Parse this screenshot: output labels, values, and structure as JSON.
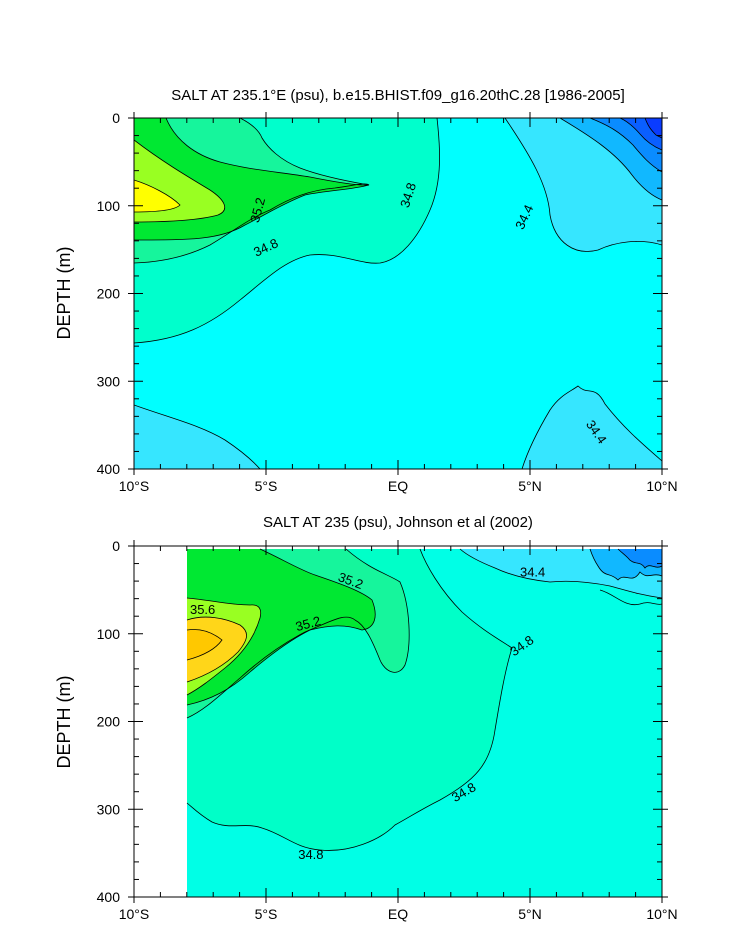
{
  "chart_data": [
    {
      "type": "contour",
      "title": "SALT AT 235.1°E (psu), b.e15.BHIST.f09_g16.20thC.28 [1986-2005]",
      "xlabel": "",
      "ylabel": "DEPTH (m)",
      "xlim": [
        -10,
        10
      ],
      "ylim": [
        0,
        400
      ],
      "y_reversed": true,
      "x_ticks": [
        {
          "value": -10,
          "label": "10°S"
        },
        {
          "value": -5,
          "label": "5°S"
        },
        {
          "value": 0,
          "label": "EQ"
        },
        {
          "value": 5,
          "label": "5°N"
        },
        {
          "value": 10,
          "label": "10°N"
        }
      ],
      "y_ticks": [
        {
          "value": 0,
          "label": "0"
        },
        {
          "value": 100,
          "label": "100"
        },
        {
          "value": 200,
          "label": "200"
        },
        {
          "value": 300,
          "label": "300"
        },
        {
          "value": 400,
          "label": "400"
        }
      ],
      "contour_interval": 0.2,
      "contour_labels": [
        {
          "text": "35.2",
          "x": -5.3,
          "y": 105
        },
        {
          "text": "34.8",
          "x": -5.0,
          "y": 148
        },
        {
          "text": "34.8",
          "x": 0.4,
          "y": 88
        },
        {
          "text": "34.4",
          "x": 4.8,
          "y": 113
        },
        {
          "text": "34.4",
          "x": 7.5,
          "y": 358
        }
      ],
      "colors": {
        "c340": "#0a5fff",
        "c342": "#0a8cff",
        "c344": "#11b8ff",
        "c346": "#36e6ff",
        "c348": "#00ffff",
        "c350": "#00ffcc",
        "c352": "#16f59c",
        "c354": "#00e832",
        "c356": "#99ff22",
        "c358": "#ffff00"
      }
    },
    {
      "type": "contour",
      "title": "SALT AT 235 (psu), Johnson et al (2002)",
      "xlabel": "",
      "ylabel": "DEPTH (m)",
      "xlim": [
        -10,
        10
      ],
      "ylim": [
        0,
        400
      ],
      "y_reversed": true,
      "data_xrange": [
        -8,
        10
      ],
      "x_ticks": [
        {
          "value": -10,
          "label": "10°S"
        },
        {
          "value": -5,
          "label": "5°S"
        },
        {
          "value": 0,
          "label": "EQ"
        },
        {
          "value": 5,
          "label": "5°N"
        },
        {
          "value": 10,
          "label": "10°N"
        }
      ],
      "y_ticks": [
        {
          "value": 0,
          "label": "0"
        },
        {
          "value": 100,
          "label": "100"
        },
        {
          "value": 200,
          "label": "200"
        },
        {
          "value": 300,
          "label": "300"
        },
        {
          "value": 400,
          "label": "400"
        }
      ],
      "contour_interval": 0.2,
      "contour_labels": [
        {
          "text": "35.6",
          "x": -7.4,
          "y": 73
        },
        {
          "text": "35.2",
          "x": -1.8,
          "y": 40
        },
        {
          "text": "35.2",
          "x": -3.4,
          "y": 89
        },
        {
          "text": "34.8",
          "x": 4.7,
          "y": 114
        },
        {
          "text": "34.8",
          "x": 2.5,
          "y": 281
        },
        {
          "text": "34.8",
          "x": -3.3,
          "y": 352
        },
        {
          "text": "34.4",
          "x": 5.1,
          "y": 30
        }
      ],
      "colors": {
        "c340": "#0a5fff",
        "c342": "#0a8cff",
        "c344": "#11b8ff",
        "c346": "#36e6ff",
        "c348": "#00ffe6",
        "c350": "#00ffc8",
        "c352": "#16f59c",
        "c354": "#00e832",
        "c356": "#99ff22",
        "c358": "#ffd619"
      }
    }
  ]
}
